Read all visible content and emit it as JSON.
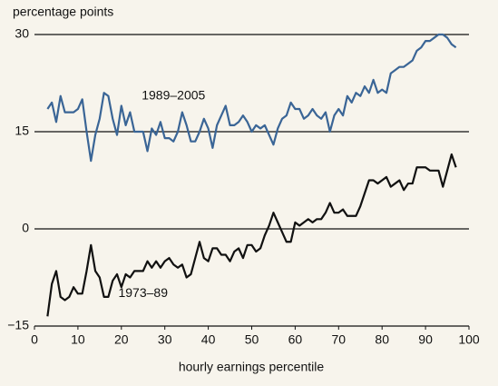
{
  "chart_data": {
    "type": "line",
    "y_label": "percentage points",
    "x_label": "hourly earnings percentile",
    "xlim": [
      0,
      100
    ],
    "xticks": [
      0,
      10,
      20,
      30,
      40,
      50,
      60,
      70,
      80,
      90,
      100
    ],
    "ylim": [
      -15,
      30
    ],
    "yticks": [
      {
        "value": -15,
        "label": "−15"
      },
      0,
      15,
      30
    ],
    "grid": true,
    "x": [
      3,
      4,
      5,
      6,
      7,
      8,
      9,
      10,
      11,
      12,
      13,
      14,
      15,
      16,
      17,
      18,
      19,
      20,
      21,
      22,
      23,
      24,
      25,
      26,
      27,
      28,
      29,
      30,
      31,
      32,
      33,
      34,
      35,
      36,
      37,
      38,
      39,
      40,
      41,
      42,
      43,
      44,
      45,
      46,
      47,
      48,
      49,
      50,
      51,
      52,
      53,
      54,
      55,
      56,
      57,
      58,
      59,
      60,
      61,
      62,
      63,
      64,
      65,
      66,
      67,
      68,
      69,
      70,
      71,
      72,
      73,
      74,
      75,
      76,
      77,
      78,
      79,
      80,
      81,
      82,
      83,
      84,
      85,
      86,
      87,
      88,
      89,
      90,
      91,
      92,
      93,
      94,
      95,
      96,
      97
    ],
    "series": [
      {
        "name": "1989–2005",
        "color": "#3a6596",
        "values": [
          18.5,
          19.5,
          16.5,
          20.5,
          18,
          18,
          18,
          18.5,
          20,
          15,
          10.5,
          14.5,
          17,
          21,
          20.5,
          17,
          14.5,
          19,
          16,
          18,
          15,
          15,
          15,
          12,
          15.5,
          14.5,
          16.5,
          14,
          14,
          13.5,
          15,
          18,
          16,
          13.5,
          13.5,
          15,
          17,
          15.5,
          12.5,
          16,
          17.5,
          19,
          16,
          16,
          16.5,
          17.5,
          16.5,
          15,
          16,
          15.5,
          16,
          14.5,
          13,
          15.5,
          17,
          17.5,
          19.5,
          18.5,
          18.5,
          17,
          17.5,
          18.5,
          17.5,
          17,
          18,
          15,
          17.5,
          18.5,
          17.5,
          20.5,
          19.5,
          21,
          20.5,
          22,
          21,
          23,
          21,
          21.5,
          21,
          24,
          24.5,
          25,
          25,
          25.5,
          26,
          27.5,
          28,
          29,
          29,
          29.5,
          30,
          30,
          29.5,
          28.5,
          28
        ]
      },
      {
        "name": "1973–89",
        "color": "#111111",
        "values": [
          -13.5,
          -8.5,
          -6.5,
          -10.5,
          -11,
          -10.5,
          -9,
          -10,
          -10,
          -6.5,
          -2.5,
          -6.5,
          -7.5,
          -10.5,
          -10.5,
          -8,
          -7,
          -9,
          -7,
          -7.5,
          -6.5,
          -6.5,
          -6.5,
          -5,
          -6,
          -5,
          -6,
          -5,
          -4.5,
          -5.5,
          -6,
          -5.5,
          -7.5,
          -7,
          -4.5,
          -2,
          -4.5,
          -5,
          -3,
          -3,
          -4,
          -4,
          -5,
          -3.5,
          -3,
          -4.5,
          -2.5,
          -2.5,
          -3.5,
          -3,
          -1,
          0.5,
          2.5,
          1,
          -0.5,
          -2,
          -2,
          1,
          0.5,
          1,
          1.5,
          1,
          1.5,
          1.5,
          2.5,
          4,
          2.5,
          2.5,
          3,
          2,
          2,
          2,
          3.5,
          5.5,
          7.5,
          7.5,
          7,
          7.5,
          8,
          6.5,
          7,
          7.5,
          6,
          7,
          7,
          9.5,
          9.5,
          9.5,
          9,
          9,
          9,
          6.5,
          9,
          11.5,
          9.5
        ]
      }
    ]
  }
}
